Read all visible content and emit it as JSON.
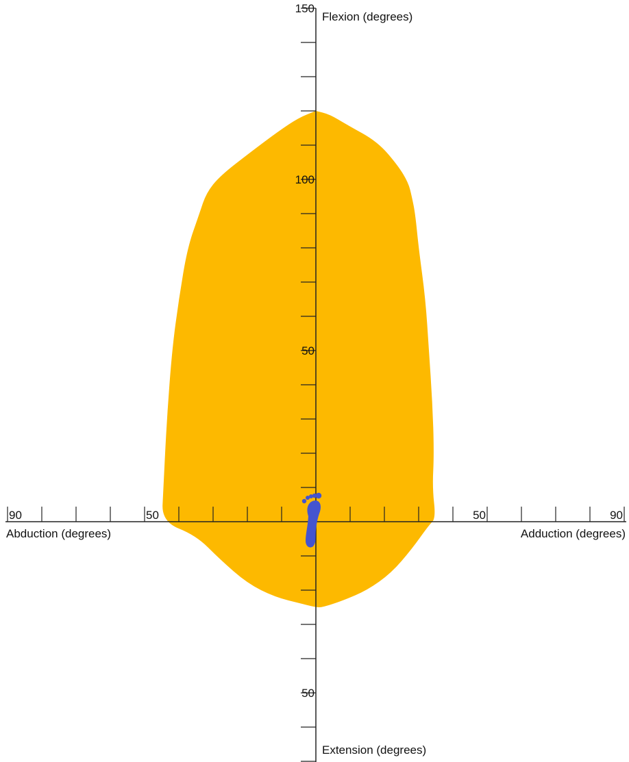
{
  "chart_data": {
    "type": "area",
    "title": "",
    "axes": {
      "vertical": {
        "positive_label": "Flexion (degrees)",
        "negative_label": "Extension (degrees)",
        "range": [
          -70,
          150
        ],
        "tick_step": 10,
        "tick_labels": [
          {
            "value": 150,
            "text": "150"
          },
          {
            "value": 100,
            "text": "100"
          },
          {
            "value": 50,
            "text": "50"
          },
          {
            "value": -50,
            "text": "50"
          }
        ]
      },
      "horizontal": {
        "negative_label": "Abduction (degrees)",
        "positive_label": "Adduction (degrees)",
        "range": [
          -90,
          90
        ],
        "tick_step": 10,
        "tick_labels": [
          {
            "value": -90,
            "text": "90"
          },
          {
            "value": -50,
            "text": "50"
          },
          {
            "value": 50,
            "text": "50"
          },
          {
            "value": 90,
            "text": "90"
          }
        ]
      }
    },
    "region": {
      "name": "",
      "color": "#fdb900",
      "boundary": [
        {
          "x": 0,
          "y": 120
        },
        {
          "x": 4,
          "y": 119
        },
        {
          "x": 9,
          "y": 116
        },
        {
          "x": 18,
          "y": 111
        },
        {
          "x": 24,
          "y": 104
        },
        {
          "x": 27,
          "y": 99
        },
        {
          "x": 28,
          "y": 95
        },
        {
          "x": 29,
          "y": 90
        },
        {
          "x": 30,
          "y": 80
        },
        {
          "x": 32,
          "y": 65
        },
        {
          "x": 33,
          "y": 50
        },
        {
          "x": 34,
          "y": 35
        },
        {
          "x": 34.5,
          "y": 20
        },
        {
          "x": 34,
          "y": 10
        },
        {
          "x": 35,
          "y": 1
        },
        {
          "x": 33,
          "y": -1
        },
        {
          "x": 28,
          "y": -8
        },
        {
          "x": 22,
          "y": -15
        },
        {
          "x": 15,
          "y": -20
        },
        {
          "x": 8,
          "y": -23
        },
        {
          "x": 2,
          "y": -25
        },
        {
          "x": 0,
          "y": -25
        },
        {
          "x": -4,
          "y": -24
        },
        {
          "x": -12,
          "y": -22
        },
        {
          "x": -20,
          "y": -18
        },
        {
          "x": -28,
          "y": -11
        },
        {
          "x": -35,
          "y": -4
        },
        {
          "x": -45,
          "y": 0
        },
        {
          "x": -44.5,
          "y": 10
        },
        {
          "x": -43.5,
          "y": 30
        },
        {
          "x": -42,
          "y": 50
        },
        {
          "x": -40,
          "y": 65
        },
        {
          "x": -37.5,
          "y": 80
        },
        {
          "x": -34,
          "y": 90
        },
        {
          "x": -32,
          "y": 96
        },
        {
          "x": -28,
          "y": 101
        },
        {
          "x": -19,
          "y": 108
        },
        {
          "x": -11,
          "y": 114
        },
        {
          "x": -5,
          "y": 118
        },
        {
          "x": 0,
          "y": 120
        }
      ]
    },
    "marker": {
      "icon": "footprint-icon",
      "x": -1,
      "y": 0,
      "color": "#4454d0"
    }
  }
}
